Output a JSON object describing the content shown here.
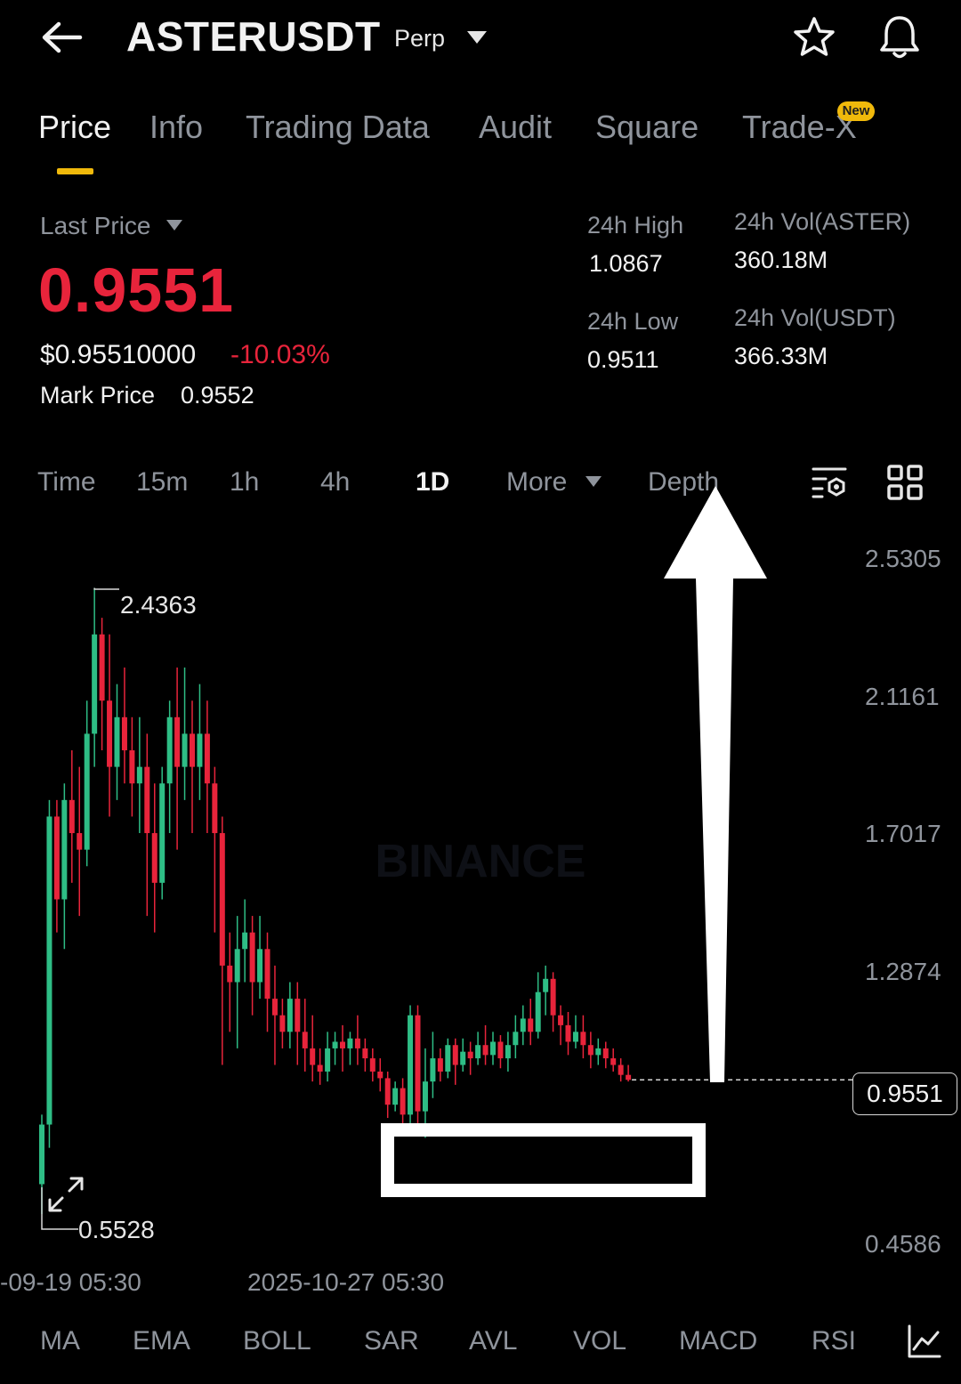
{
  "header": {
    "symbol": "ASTERUSDT",
    "contract_type": "Perp",
    "icons": [
      "back-arrow-icon",
      "dropdown-caret-icon",
      "star-icon",
      "bell-icon"
    ]
  },
  "tabs": [
    {
      "label": "Price",
      "active": true
    },
    {
      "label": "Info"
    },
    {
      "label": "Trading Data"
    },
    {
      "label": "Audit"
    },
    {
      "label": "Square"
    },
    {
      "label": "Trade-X",
      "badge": "New"
    }
  ],
  "price": {
    "last_price_label": "Last Price",
    "last_price": "0.9551",
    "usd_price": "$0.95510000",
    "change_pct": "-10.03%",
    "mark_price_label": "Mark Price",
    "mark_price": "0.9552"
  },
  "stats": {
    "high_label": "24h High",
    "high": "1.0867",
    "low_label": "24h Low",
    "low": "0.9511",
    "vol_base_label": "24h Vol(ASTER)",
    "vol_base": "360.18M",
    "vol_quote_label": "24h Vol(USDT)",
    "vol_quote": "366.33M"
  },
  "intervals": {
    "items": [
      "Time",
      "15m",
      "1h",
      "4h",
      "1D",
      "More",
      "Depth"
    ],
    "active": "1D"
  },
  "chart_data": {
    "type": "candlestick",
    "watermark": "BINANCE",
    "y_ticks": [
      "2.5305",
      "2.1161",
      "1.7017",
      "1.2874",
      "0.4586"
    ],
    "x_ticks": [
      "-09-19 05:30",
      "2025-10-27 05:30"
    ],
    "max_label": "2.4363",
    "min_label": "0.5528",
    "current_price": "0.9551",
    "ylim": [
      0.4586,
      2.5305
    ],
    "candles": [
      [
        0.64,
        0.82,
        0.55,
        0.85
      ],
      [
        0.82,
        1.75,
        0.75,
        1.8
      ],
      [
        1.75,
        1.5,
        1.4,
        1.8
      ],
      [
        1.5,
        1.8,
        1.35,
        1.85
      ],
      [
        1.8,
        1.7,
        1.55,
        1.95
      ],
      [
        1.7,
        1.65,
        1.45,
        1.9
      ],
      [
        1.65,
        2.0,
        1.6,
        2.1
      ],
      [
        2.0,
        2.3,
        1.9,
        2.44
      ],
      [
        2.3,
        2.1,
        1.95,
        2.35
      ],
      [
        2.1,
        1.9,
        1.75,
        2.3
      ],
      [
        1.9,
        2.05,
        1.8,
        2.15
      ],
      [
        2.05,
        1.95,
        1.85,
        2.2
      ],
      [
        1.95,
        1.85,
        1.75,
        2.05
      ],
      [
        1.85,
        1.9,
        1.7,
        2.05
      ],
      [
        1.9,
        1.7,
        1.45,
        2.0
      ],
      [
        1.7,
        1.55,
        1.4,
        1.85
      ],
      [
        1.55,
        1.85,
        1.5,
        1.9
      ],
      [
        1.85,
        2.05,
        1.7,
        2.1
      ],
      [
        2.05,
        1.9,
        1.65,
        2.2
      ],
      [
        1.9,
        2.0,
        1.8,
        2.2
      ],
      [
        2.0,
        1.9,
        1.7,
        2.1
      ],
      [
        1.9,
        2.0,
        1.8,
        2.15
      ],
      [
        2.0,
        1.85,
        1.7,
        2.1
      ],
      [
        1.85,
        1.7,
        1.4,
        1.9
      ],
      [
        1.7,
        1.3,
        1.0,
        1.75
      ],
      [
        1.3,
        1.25,
        1.1,
        1.4
      ],
      [
        1.25,
        1.35,
        1.05,
        1.45
      ],
      [
        1.35,
        1.4,
        1.25,
        1.5
      ],
      [
        1.4,
        1.25,
        1.15,
        1.45
      ],
      [
        1.25,
        1.35,
        1.2,
        1.45
      ],
      [
        1.35,
        1.2,
        1.1,
        1.4
      ],
      [
        1.2,
        1.15,
        1.0,
        1.3
      ],
      [
        1.15,
        1.1,
        1.05,
        1.2
      ],
      [
        1.1,
        1.2,
        1.05,
        1.25
      ],
      [
        1.2,
        1.1,
        1.0,
        1.25
      ],
      [
        1.1,
        1.05,
        0.98,
        1.2
      ],
      [
        1.05,
        1.0,
        0.95,
        1.15
      ],
      [
        1.0,
        0.98,
        0.94,
        1.05
      ],
      [
        0.98,
        1.05,
        0.95,
        1.1
      ],
      [
        1.05,
        1.07,
        1.0,
        1.1
      ],
      [
        1.07,
        1.05,
        0.98,
        1.12
      ],
      [
        1.05,
        1.08,
        1.0,
        1.1
      ],
      [
        1.08,
        1.05,
        1.0,
        1.15
      ],
      [
        1.05,
        1.02,
        0.98,
        1.08
      ],
      [
        1.02,
        0.98,
        0.95,
        1.05
      ],
      [
        0.98,
        0.96,
        0.92,
        1.02
      ],
      [
        0.96,
        0.88,
        0.84,
        0.98
      ],
      [
        0.88,
        0.93,
        0.86,
        0.95
      ],
      [
        0.93,
        0.85,
        0.8,
        0.96
      ],
      [
        0.85,
        1.15,
        0.82,
        1.18
      ],
      [
        1.15,
        0.86,
        0.82,
        1.18
      ],
      [
        0.86,
        0.95,
        0.78,
        1.05
      ],
      [
        0.95,
        1.02,
        0.9,
        1.1
      ],
      [
        1.02,
        0.98,
        0.95,
        1.05
      ],
      [
        0.98,
        1.06,
        0.96,
        1.08
      ],
      [
        1.06,
        1.0,
        0.94,
        1.08
      ],
      [
        1.0,
        1.04,
        0.98,
        1.08
      ],
      [
        1.04,
        1.02,
        0.97,
        1.07
      ],
      [
        1.02,
        1.06,
        1.0,
        1.1
      ],
      [
        1.06,
        1.03,
        1.0,
        1.12
      ],
      [
        1.03,
        1.07,
        1.0,
        1.1
      ],
      [
        1.07,
        1.02,
        0.99,
        1.09
      ],
      [
        1.02,
        1.06,
        0.98,
        1.1
      ],
      [
        1.06,
        1.1,
        1.02,
        1.15
      ],
      [
        1.1,
        1.14,
        1.06,
        1.18
      ],
      [
        1.14,
        1.1,
        1.06,
        1.2
      ],
      [
        1.1,
        1.22,
        1.08,
        1.28
      ],
      [
        1.22,
        1.26,
        1.15,
        1.3
      ],
      [
        1.26,
        1.15,
        1.1,
        1.28
      ],
      [
        1.15,
        1.12,
        1.06,
        1.18
      ],
      [
        1.12,
        1.07,
        1.03,
        1.16
      ],
      [
        1.07,
        1.1,
        1.05,
        1.15
      ],
      [
        1.1,
        1.06,
        1.02,
        1.15
      ],
      [
        1.06,
        1.03,
        0.99,
        1.1
      ],
      [
        1.03,
        1.05,
        1.0,
        1.08
      ],
      [
        1.05,
        1.02,
        0.99,
        1.07
      ],
      [
        1.02,
        1.0,
        0.98,
        1.05
      ],
      [
        1.0,
        0.97,
        0.95,
        1.02
      ],
      [
        0.97,
        0.955,
        0.95,
        1.0
      ]
    ]
  },
  "indicators": [
    "MA",
    "EMA",
    "BOLL",
    "SAR",
    "AVL",
    "VOL",
    "MACD",
    "RSI"
  ]
}
